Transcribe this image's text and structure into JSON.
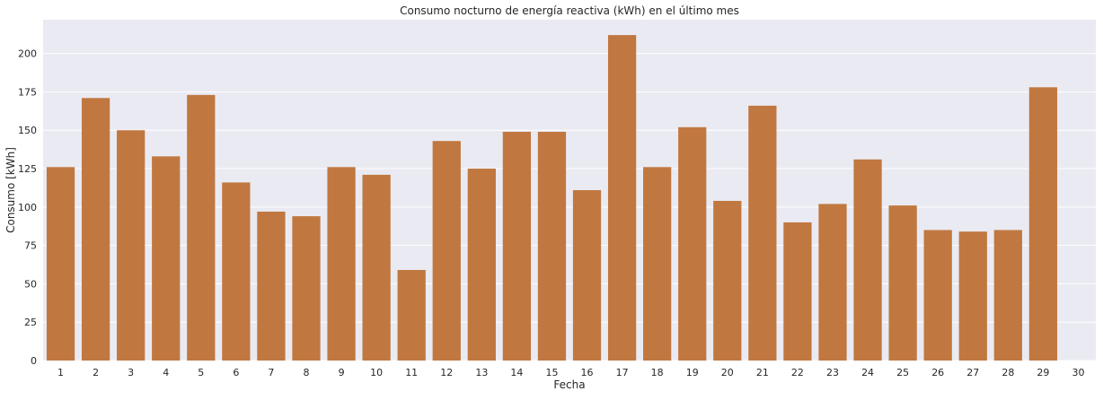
{
  "chart_data": {
    "type": "bar",
    "title": "Consumo nocturno de energía reactiva (kWh) en el último mes",
    "xlabel": "Fecha",
    "ylabel": "Consumo [kWh]",
    "categories": [
      "1",
      "2",
      "3",
      "4",
      "5",
      "6",
      "7",
      "8",
      "9",
      "10",
      "11",
      "12",
      "13",
      "14",
      "15",
      "16",
      "17",
      "18",
      "19",
      "20",
      "21",
      "22",
      "23",
      "24",
      "25",
      "26",
      "27",
      "28",
      "29",
      "30"
    ],
    "values": [
      126,
      171,
      150,
      133,
      173,
      116,
      97,
      94,
      126,
      121,
      59,
      143,
      125,
      149,
      149,
      111,
      212,
      126,
      152,
      104,
      166,
      90,
      102,
      131,
      101,
      85,
      84,
      85,
      178,
      0
    ],
    "yticks": [
      0,
      25,
      50,
      75,
      100,
      125,
      150,
      175,
      200
    ],
    "ylim": [
      0,
      222
    ],
    "grid": true,
    "legend": "none",
    "colors": {
      "bar": "#c07840",
      "plot_background": "#eaeaf2",
      "grid": "#ffffff"
    }
  }
}
